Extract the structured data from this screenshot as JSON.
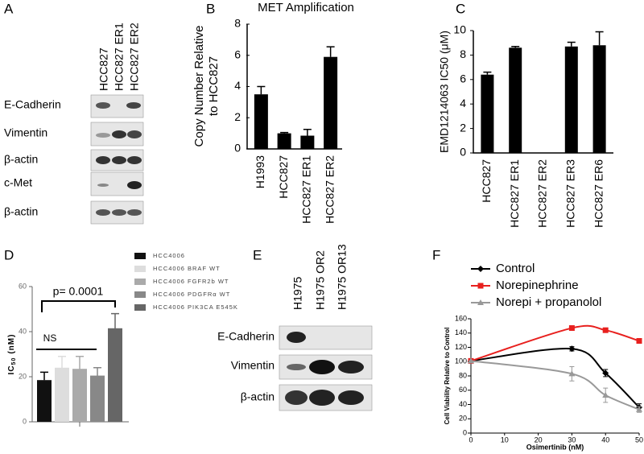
{
  "panel_labels": [
    "A",
    "B",
    "C",
    "D",
    "E",
    "F"
  ],
  "blot_a": {
    "lanes": [
      "HCC827",
      "HCC827 ER1",
      "HCC827 ER2"
    ],
    "rows": [
      "E-Cadherin",
      "Vimentin",
      "β-actin",
      "c-Met",
      "β-actin"
    ]
  },
  "blot_e": {
    "lanes": [
      "H1975",
      "H1975 OR2",
      "H1975 OR13"
    ],
    "rows": [
      "E-Cadherin",
      "Vimentin",
      "β-actin"
    ]
  },
  "chart_data": [
    {
      "type": "bar",
      "title": "MET Amplification",
      "ylabel": [
        "Copy Number Relative",
        "to HCC827"
      ],
      "categories": [
        "H1993",
        "HCC827",
        "HCC827 ER1",
        "HCC827 ER2"
      ],
      "values": [
        3.5,
        1.0,
        0.85,
        5.9
      ],
      "errors": [
        0.5,
        0.05,
        0.4,
        0.65
      ],
      "color": "#000000",
      "ylim": [
        0,
        8
      ],
      "yticks": [
        0,
        2,
        4,
        6,
        8
      ]
    },
    {
      "type": "bar",
      "ylabel": [
        "EMD1214063 IC50 (μM)"
      ],
      "categories": [
        "HCC827",
        "HCC827 ER1",
        "HCC827 ER2",
        "HCC827 ER3",
        "HCC827 ER6"
      ],
      "values": [
        6.4,
        8.6,
        null,
        8.7,
        8.8
      ],
      "errors": [
        0.2,
        0.1,
        null,
        0.35,
        1.1
      ],
      "color": "#000000",
      "ylim": [
        0,
        10
      ],
      "yticks": [
        0,
        2,
        4,
        6,
        8,
        10
      ]
    },
    {
      "type": "grouped",
      "ylabel": [
        "IC",
        "50",
        "(nM)"
      ],
      "series": [
        {
          "name": "HCC4006",
          "color": "#111111",
          "values": [
            18.5
          ],
          "errors": [
            3.5
          ]
        },
        {
          "name": "HCC4006 BRAF WT",
          "color": "#dddddd",
          "values": [
            24
          ],
          "errors": [
            5
          ]
        },
        {
          "name": "HCC4006 FGFR2b WT",
          "color": "#aaaaaa",
          "values": [
            23.5
          ],
          "errors": [
            5.5
          ]
        },
        {
          "name": "HCC4006 PDGFRα WT",
          "color": "#888888",
          "values": [
            20.5
          ],
          "errors": [
            3.5
          ]
        },
        {
          "name": "HCC4006 PIK3CA E545K",
          "color": "#666666",
          "values": [
            41.5
          ],
          "errors": [
            6.5
          ]
        }
      ],
      "annotations": [
        "p= 0.0001",
        "NS"
      ],
      "ylim": [
        0,
        60
      ],
      "yticks": [
        0,
        20,
        40,
        60
      ]
    },
    {
      "type": "line",
      "xlabel": "Osimertinib (nM)",
      "ylabel": [
        "Cell Viability Relative to Control"
      ],
      "x": [
        0,
        30,
        40,
        50
      ],
      "series": [
        {
          "name": "Control",
          "color": "#000000",
          "marker": "diamond",
          "values": [
            101,
            118,
            84,
            36
          ],
          "errors": [
            0,
            3,
            5,
            5
          ]
        },
        {
          "name": "Norepinephrine",
          "color": "#e8201e",
          "marker": "square",
          "values": [
            101,
            147,
            144,
            129
          ],
          "errors": [
            0,
            2,
            2,
            2
          ]
        },
        {
          "name": "Norepi + propanolol",
          "color": "#999999",
          "marker": "triangle",
          "values": [
            101,
            83,
            53,
            33
          ],
          "errors": [
            0,
            10,
            10,
            4
          ]
        }
      ],
      "xlim": [
        0,
        50
      ],
      "xticks": [
        0,
        10,
        20,
        30,
        40,
        50
      ],
      "ylim": [
        0,
        160
      ],
      "yticks": [
        0,
        20,
        40,
        60,
        80,
        100,
        120,
        140,
        160
      ]
    }
  ]
}
